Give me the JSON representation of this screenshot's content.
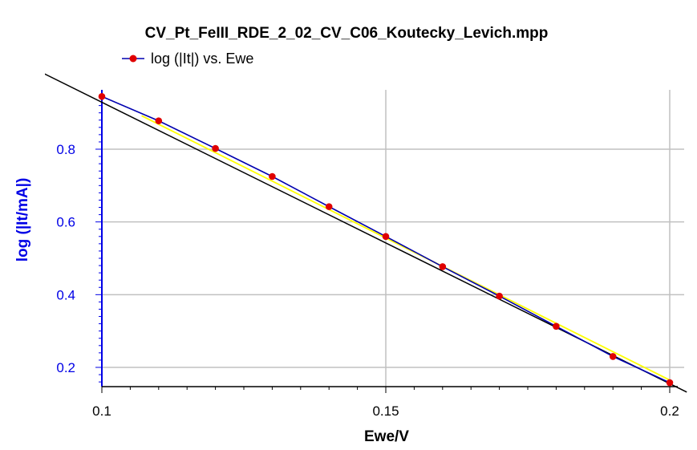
{
  "chart_data": {
    "type": "line",
    "title": "CV_Pt_FeIII_RDE_2_02_CV_C06_Koutecky_Levich.mpp",
    "xlabel": "Ewe/V",
    "ylabel": "log (|It/mA|)",
    "xlim": [
      0.1,
      0.201
    ],
    "ylim": [
      0.14,
      0.96
    ],
    "x_ticks": [
      0.1,
      0.15,
      0.2
    ],
    "x_tick_labels": [
      "0.1",
      "0.15",
      "0.2"
    ],
    "y_ticks": [
      0.2,
      0.4,
      0.6,
      0.8
    ],
    "y_tick_labels": [
      "0.2",
      "0.4",
      "0.6",
      "0.8"
    ],
    "grid": true,
    "legend_position": "top-left",
    "series": [
      {
        "name": "log (|It|) vs. Ewe",
        "color": "#e00000",
        "line_color": "#0000b0",
        "x": [
          0.1,
          0.11,
          0.12,
          0.13,
          0.14,
          0.15,
          0.16,
          0.17,
          0.18,
          0.19,
          0.2
        ],
        "y": [
          0.945,
          0.878,
          0.802,
          0.725,
          0.642,
          0.56,
          0.477,
          0.396,
          0.313,
          0.23,
          0.158
        ]
      }
    ],
    "fit_lines": [
      {
        "color": "#000000",
        "x": [
          0.0898,
          0.203
        ],
        "y": [
          1.008,
          0.132
        ]
      },
      {
        "color": "#ffff00",
        "x": [
          0.107,
          0.2
        ],
        "y": [
          0.892,
          0.165
        ]
      }
    ],
    "colors": {
      "axis_y": "#0000e6",
      "grid": "#c0c0c0",
      "axis_x": "#000000"
    }
  }
}
